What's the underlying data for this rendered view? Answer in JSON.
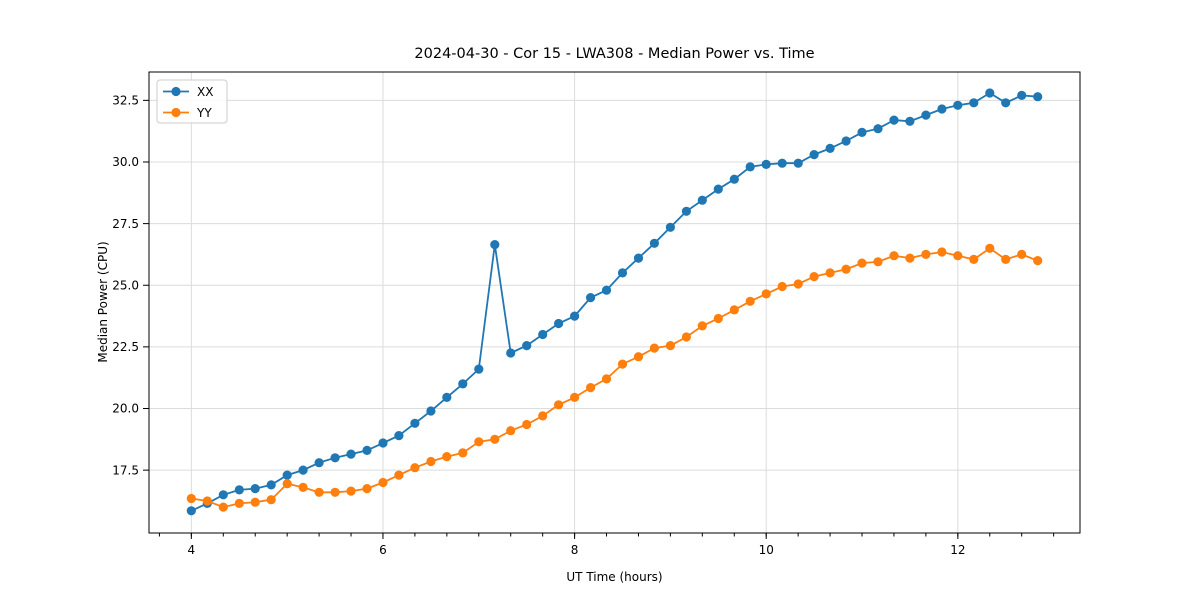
{
  "chart_data": {
    "type": "line",
    "title": "2024-04-30 - Cor 15 - LWA308 - Median Power vs. Time",
    "xlabel": "UT Time (hours)",
    "ylabel": "Median Power (CPU)",
    "xlim": [
      3.558,
      13.275
    ],
    "ylim": [
      14.95,
      33.65
    ],
    "xticks": [
      4,
      6,
      8,
      10,
      12
    ],
    "yticks": [
      17.5,
      20.0,
      22.5,
      25.0,
      27.5,
      30.0,
      32.5
    ],
    "minor_xtick_step": 0.33333,
    "grid": true,
    "legend_position": "upper left",
    "x_start": 4.0,
    "x_step": 0.1666667,
    "palette": {
      "background": "#ffffff",
      "grid": "#dcdcdc",
      "axis": "#000000",
      "legend_border": "#cccccc"
    },
    "series": [
      {
        "name": "XX",
        "color": "#1f77b4",
        "values": [
          15.85,
          16.15,
          16.5,
          16.7,
          16.75,
          16.9,
          17.3,
          17.5,
          17.8,
          18.0,
          18.15,
          18.3,
          18.6,
          18.9,
          19.4,
          19.9,
          20.45,
          21.0,
          21.6,
          26.65,
          22.25,
          22.55,
          23.0,
          23.45,
          23.75,
          24.5,
          24.8,
          25.5,
          26.1,
          26.7,
          27.35,
          28.0,
          28.45,
          28.9,
          29.3,
          29.8,
          29.9,
          29.95,
          29.95,
          30.3,
          30.55,
          30.85,
          31.2,
          31.35,
          31.7,
          31.65,
          31.9,
          32.15,
          32.3,
          32.4,
          32.8,
          32.4,
          32.7,
          32.65
        ]
      },
      {
        "name": "YY",
        "color": "#ff7f0e",
        "values": [
          16.35,
          16.25,
          16.0,
          16.15,
          16.2,
          16.3,
          16.95,
          16.8,
          16.6,
          16.6,
          16.65,
          16.75,
          17.0,
          17.3,
          17.6,
          17.85,
          18.05,
          18.2,
          18.65,
          18.75,
          19.1,
          19.35,
          19.7,
          20.15,
          20.45,
          20.85,
          21.2,
          21.8,
          22.1,
          22.45,
          22.55,
          22.9,
          23.35,
          23.65,
          24.0,
          24.35,
          24.65,
          24.95,
          25.05,
          25.35,
          25.5,
          25.65,
          25.9,
          25.95,
          26.2,
          26.1,
          26.25,
          26.35,
          26.2,
          26.05,
          26.5,
          26.05,
          26.25,
          26.0
        ]
      }
    ]
  }
}
